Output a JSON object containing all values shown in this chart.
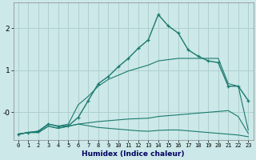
{
  "xlabel": "Humidex (Indice chaleur)",
  "bg_color": "#cce8e8",
  "grid_color": "#aacccc",
  "line_color": "#1a7a6e",
  "x_ticks": [
    0,
    1,
    2,
    3,
    4,
    5,
    6,
    7,
    8,
    9,
    10,
    11,
    12,
    13,
    14,
    15,
    16,
    17,
    18,
    19,
    20,
    21,
    22,
    23
  ],
  "ylim": [
    -0.65,
    2.6
  ],
  "line1_y": [
    -0.52,
    -0.48,
    -0.45,
    -0.28,
    -0.33,
    -0.32,
    -0.12,
    0.28,
    0.68,
    0.85,
    1.08,
    1.28,
    1.52,
    1.72,
    2.32,
    2.05,
    1.88,
    1.48,
    1.33,
    1.22,
    1.18,
    0.62,
    0.62,
    0.28
  ],
  "line2_y": [
    -0.52,
    -0.48,
    -0.45,
    -0.28,
    -0.33,
    -0.28,
    0.18,
    0.38,
    0.62,
    0.78,
    0.88,
    0.98,
    1.05,
    1.12,
    1.22,
    1.25,
    1.28,
    1.28,
    1.28,
    1.28,
    1.28,
    0.68,
    0.62,
    -0.42
  ],
  "line3_y": [
    -0.52,
    -0.48,
    -0.48,
    -0.33,
    -0.38,
    -0.33,
    -0.28,
    -0.25,
    -0.22,
    -0.2,
    -0.18,
    -0.16,
    -0.15,
    -0.14,
    -0.1,
    -0.08,
    -0.06,
    -0.04,
    -0.02,
    0.0,
    0.02,
    0.04,
    -0.1,
    -0.5
  ],
  "line4_y": [
    -0.52,
    -0.48,
    -0.48,
    -0.33,
    -0.38,
    -0.33,
    -0.28,
    -0.32,
    -0.36,
    -0.38,
    -0.4,
    -0.42,
    -0.44,
    -0.45,
    -0.43,
    -0.42,
    -0.42,
    -0.44,
    -0.46,
    -0.48,
    -0.5,
    -0.52,
    -0.54,
    -0.58
  ],
  "x": [
    0,
    1,
    2,
    3,
    4,
    5,
    6,
    7,
    8,
    9,
    10,
    11,
    12,
    13,
    14,
    15,
    16,
    17,
    18,
    19,
    20,
    21,
    22,
    23
  ]
}
